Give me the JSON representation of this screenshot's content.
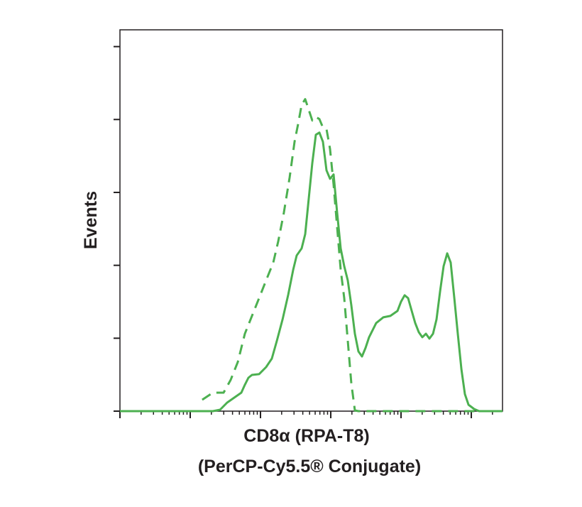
{
  "chart_data": {
    "type": "line",
    "xlabel": [
      "CD8α (RPA-T8)",
      "(PerCP-Cy5.5® Conjugate)"
    ],
    "ylabel": "Events",
    "xscale": "log",
    "xlim": [
      1,
      278000
    ],
    "xticks": [
      1,
      10,
      100,
      1000,
      10000,
      100000
    ],
    "xticks_minor": [
      2,
      3,
      4,
      5,
      6,
      7,
      8,
      9,
      20,
      30,
      40,
      50,
      60,
      70,
      80,
      90,
      200,
      300,
      400,
      500,
      600,
      700,
      800,
      900,
      2000,
      3000,
      4000,
      5000,
      6000,
      7000,
      8000,
      9000,
      20000,
      30000,
      40000,
      50000,
      60000,
      70000,
      80000,
      90000,
      200000
    ],
    "ylim": [
      0,
      523
    ],
    "yticks": [
      0,
      100,
      200,
      300,
      400,
      500
    ],
    "series": [
      {
        "color": "#4cb050",
        "dash": false,
        "x": [
          1,
          21.0,
          26.6,
          33.5,
          42.3,
          53.4,
          59.9,
          67.3,
          75.6,
          95.4,
          120,
          145,
          171,
          206,
          248,
          292,
          327,
          385,
          433,
          486,
          546,
          613,
          689,
          774,
          869,
          977,
          1097,
          1233,
          1384,
          1556,
          1747,
          1963,
          2203,
          2477,
          2780,
          3126,
          3508,
          4426,
          5585,
          7047,
          8892,
          10000,
          11240,
          12620,
          14190,
          15920,
          17900,
          20090,
          22590,
          25350,
          28510,
          31990,
          35970,
          40370,
          45390,
          50930,
          57280,
          64270,
          72280,
          81100,
          91200,
          109700,
          129100,
          278000
        ],
        "values": [
          0,
          0,
          1.9,
          11.7,
          18.5,
          25.3,
          36.1,
          45.8,
          49.7,
          50.7,
          60.4,
          72.1,
          96.5,
          125.7,
          159.8,
          194,
          213.5,
          223.2,
          242.7,
          291.4,
          340.2,
          379.1,
          382.1,
          369.4,
          330.4,
          318.7,
          324.6,
          272,
          223.2,
          198.8,
          179.3,
          145.2,
          106.2,
          81.9,
          75,
          86.7,
          101.4,
          120.9,
          128.7,
          130.6,
          137.4,
          150.1,
          158.9,
          155,
          137.4,
          120.9,
          108.2,
          101.4,
          106.2,
          99.4,
          106.2,
          125.7,
          164.7,
          198.8,
          216.4,
          203.7,
          155,
          106.2,
          57.5,
          23.4,
          8.8,
          2.9,
          0,
          0
        ]
      },
      {
        "color": "#4cb050",
        "dash": true,
        "x": [
          14.8,
          21.0,
          29.8,
          37.6,
          47.5,
          59.9,
          75.6,
          95.4,
          120,
          152,
          179,
          215,
          260,
          305,
          343,
          385,
          433,
          486,
          546,
          613,
          689,
          774,
          869,
          977,
          1097,
          1233,
          1384,
          1556,
          1747,
          1963,
          2203,
          2477,
          278000
        ],
        "values": [
          15.6,
          25.3,
          25.3,
          42.9,
          67.3,
          106.2,
          130.6,
          155,
          179.3,
          203.7,
          232.9,
          271.9,
          320.7,
          369.4,
          393.8,
          420.1,
          427.9,
          413.3,
          398.6,
          403.5,
          400.6,
          388.9,
          386.9,
          359.6,
          310.9,
          252.4,
          194,
          155,
          96.5,
          38,
          1,
          0,
          0
        ]
      }
    ]
  }
}
